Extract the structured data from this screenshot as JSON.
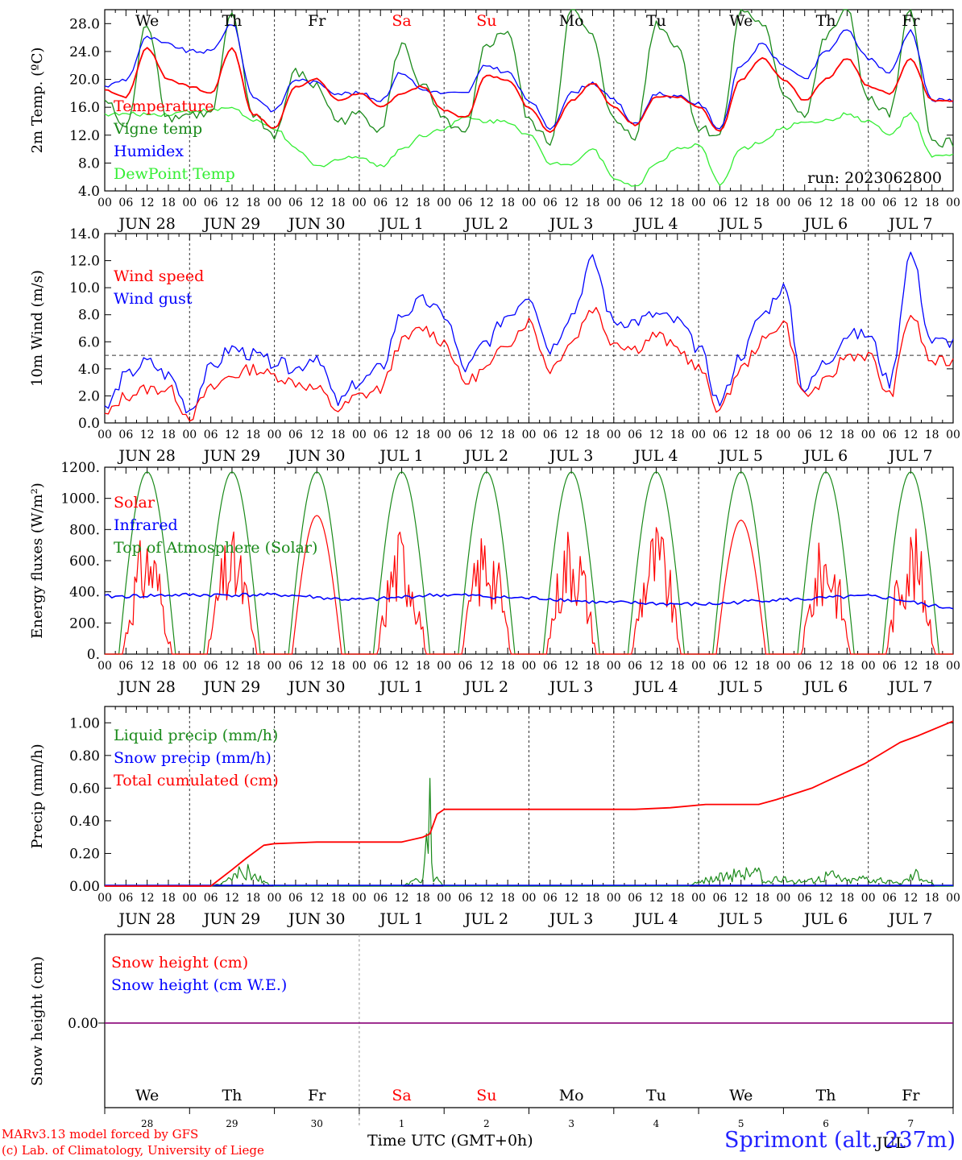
{
  "colors": {
    "temperature": "#ff0000",
    "vigne": "#1a8a1a",
    "humidex": "#0000ff",
    "dewpoint": "#33ee33",
    "snow_cm": "#ff0000",
    "snow_we": "#0000ff"
  },
  "date_labels": [
    "JUN 28",
    "JUN 29",
    "JUN 30",
    "JUL  1",
    "JUL  2",
    "JUL  3",
    "JUL  4",
    "JUL  5",
    "JUL  6",
    "JUL  7"
  ],
  "hour_labels": [
    "00",
    "06",
    "12",
    "18"
  ],
  "weekdays": [
    {
      "label": "We",
      "color": "#000000"
    },
    {
      "label": "Th",
      "color": "#000000"
    },
    {
      "label": "Fr",
      "color": "#000000"
    },
    {
      "label": "Sa",
      "color": "#ff0000"
    },
    {
      "label": "Su",
      "color": "#ff0000"
    },
    {
      "label": "Mo",
      "color": "#000000"
    },
    {
      "label": "Tu",
      "color": "#000000"
    },
    {
      "label": "We",
      "color": "#000000"
    },
    {
      "label": "Th",
      "color": "#000000"
    },
    {
      "label": "Fr",
      "color": "#000000"
    }
  ],
  "day_numbers": [
    "28",
    "29",
    "30",
    "1",
    "2",
    "3",
    "4",
    "5",
    "6",
    "7"
  ],
  "bottom_month": "JUL",
  "footer": {
    "credit_line1": "MARv3.13 model forced by GFS",
    "credit_line2": "(c) Lab. of Climatology, University of Liege",
    "time_label": "Time UTC (GMT+0h)",
    "station": "Sprimont (alt. 237m)"
  },
  "chart_data": [
    {
      "type": "line",
      "ylabel": "2m Temp. (ºC)",
      "ylim": [
        4.0,
        30.0
      ],
      "yticks": [
        "4.0",
        "8.0",
        "12.0",
        "16.0",
        "20.0",
        "24.0",
        "28.0"
      ],
      "run": "run: 2023062800",
      "x_unit": "hours since 2023-06-28 00 UTC",
      "series": [
        {
          "name": "Temperature",
          "x": [
            0,
            6,
            12,
            18,
            24,
            30,
            36,
            42,
            48,
            54,
            60,
            66,
            72,
            78,
            84,
            90,
            96,
            102,
            108,
            114,
            120,
            126,
            132,
            138,
            144,
            150,
            156,
            162,
            168,
            174,
            180,
            186,
            192,
            198,
            204,
            210,
            216,
            222,
            228,
            234
          ],
          "values": [
            18.5,
            17.5,
            24.5,
            20,
            19,
            18,
            24.5,
            15,
            13,
            19,
            20,
            17,
            18,
            16,
            18,
            19,
            15.5,
            14.5,
            20.5,
            20,
            16,
            12.5,
            17,
            19.5,
            16,
            13.5,
            17.5,
            17.5,
            16,
            12.5,
            20,
            23,
            20,
            17,
            20,
            23,
            19,
            18,
            23,
            17
          ]
        },
        {
          "name": "Vigne temp",
          "x": [
            0,
            6,
            12,
            18,
            24,
            30,
            36,
            42,
            48,
            54,
            60,
            66,
            72,
            78,
            84,
            90,
            96,
            102,
            108,
            114,
            120,
            126,
            132,
            138,
            144,
            150,
            156,
            162,
            168,
            174,
            180,
            186,
            192,
            198,
            204,
            210,
            216,
            222,
            228,
            234
          ],
          "values": [
            17,
            13,
            28,
            14.5,
            15,
            15,
            29,
            15,
            12,
            21,
            19,
            14,
            15,
            13,
            25,
            19,
            14,
            12,
            25,
            27,
            14,
            11,
            30,
            26,
            14,
            12,
            28,
            25,
            13,
            12,
            30,
            28,
            18,
            15,
            26,
            30,
            17,
            15,
            30,
            11
          ]
        },
        {
          "name": "Humidex",
          "x": [
            0,
            6,
            12,
            18,
            24,
            30,
            36,
            42,
            48,
            54,
            60,
            66,
            72,
            78,
            84,
            90,
            96,
            102,
            108,
            114,
            120,
            126,
            132,
            138,
            144,
            150,
            156,
            162,
            168,
            174,
            180,
            186,
            192,
            198,
            204,
            210,
            216,
            222,
            228,
            234
          ],
          "values": [
            19,
            20,
            26,
            25,
            24,
            24,
            28,
            17.5,
            15.5,
            20,
            19.5,
            18,
            18,
            17,
            21,
            18.5,
            18,
            18,
            22,
            21,
            17,
            13,
            18,
            19.5,
            17,
            13.5,
            18,
            17.5,
            16.5,
            13,
            22,
            25,
            22,
            20,
            24,
            27,
            23,
            21,
            27,
            17
          ]
        },
        {
          "name": "DewPoint Temp",
          "x": [
            0,
            6,
            12,
            18,
            24,
            30,
            36,
            42,
            48,
            54,
            60,
            66,
            72,
            78,
            84,
            90,
            96,
            102,
            108,
            114,
            120,
            126,
            132,
            138,
            144,
            150,
            156,
            162,
            168,
            174,
            180,
            186,
            192,
            198,
            204,
            210,
            216,
            222,
            228,
            234
          ],
          "values": [
            15,
            15,
            15,
            15,
            15.5,
            15.5,
            16,
            14,
            13,
            10,
            7.5,
            8.5,
            9,
            7.5,
            10,
            12,
            13,
            14.5,
            14,
            14,
            12,
            8,
            8,
            10,
            6,
            4.5,
            8,
            10,
            10.5,
            5,
            10,
            11,
            13,
            14,
            14,
            15,
            14,
            12,
            15,
            9
          ]
        }
      ]
    },
    {
      "type": "line",
      "ylabel": "10m Wind (m/s)",
      "ylim": [
        0.0,
        14.0
      ],
      "yticks": [
        "0.0",
        "2.0",
        "4.0",
        "6.0",
        "8.0",
        "10.0",
        "12.0",
        "14.0"
      ],
      "reference_line": 5.0,
      "series": [
        {
          "name": "Wind speed",
          "x": [
            0,
            6,
            12,
            18,
            24,
            30,
            36,
            42,
            48,
            54,
            60,
            66,
            72,
            78,
            84,
            90,
            96,
            102,
            108,
            114,
            120,
            126,
            132,
            138,
            144,
            150,
            156,
            162,
            168,
            174,
            180,
            186,
            192,
            198,
            204,
            210,
            216,
            222,
            228,
            234
          ],
          "values": [
            0.5,
            2,
            2.5,
            2.5,
            0.5,
            2.5,
            3.5,
            4,
            3.5,
            3,
            2.5,
            1,
            2,
            2.5,
            6,
            7,
            6,
            3,
            4,
            6,
            7.5,
            4,
            6,
            8.5,
            6,
            5.5,
            6.5,
            5.5,
            4,
            1,
            4,
            6,
            7.5,
            2,
            3,
            5,
            5,
            2,
            8,
            4.5
          ]
        },
        {
          "name": "Wind gust",
          "x": [
            0,
            6,
            12,
            18,
            24,
            30,
            36,
            42,
            48,
            54,
            60,
            66,
            72,
            78,
            84,
            90,
            96,
            102,
            108,
            114,
            120,
            126,
            132,
            138,
            144,
            150,
            156,
            162,
            168,
            174,
            180,
            186,
            192,
            198,
            204,
            210,
            216,
            222,
            228,
            234
          ],
          "values": [
            1,
            3.5,
            4.5,
            3.5,
            1,
            4,
            5.5,
            5,
            4.5,
            4,
            5,
            1.5,
            3,
            4,
            8,
            9,
            8,
            4,
            6,
            8,
            9.5,
            5.5,
            8,
            12,
            7.5,
            7.5,
            8,
            7.5,
            5.5,
            1.5,
            5,
            8,
            10,
            2.5,
            4.5,
            6.5,
            6.5,
            3,
            12.5,
            6
          ]
        }
      ]
    },
    {
      "type": "line",
      "ylabel": "Energy fluxes (W/m²)",
      "ylim": [
        0,
        1200
      ],
      "yticks": [
        "0.",
        "200.",
        "400.",
        "600.",
        "800.",
        "1000.",
        "1200."
      ],
      "series": [
        {
          "name": "Solar",
          "day_peaks": [
            820,
            800,
            890,
            850,
            860,
            890,
            870,
            860,
            800,
            860
          ]
        },
        {
          "name": "Infrared",
          "x": [
            0,
            24,
            48,
            72,
            96,
            120,
            144,
            168,
            192,
            216,
            240
          ],
          "values": [
            370,
            380,
            380,
            350,
            380,
            360,
            330,
            320,
            350,
            370,
            300
          ]
        },
        {
          "name": "Top of Atmosphere (Solar)",
          "day_peaks": [
            1170,
            1170,
            1170,
            1170,
            1170,
            1170,
            1170,
            1170,
            1170,
            1170
          ]
        }
      ]
    },
    {
      "type": "line",
      "ylabel": "Precip (mm/h)",
      "ylim": [
        0.0,
        1.1
      ],
      "yticks": [
        "0.00",
        "0.20",
        "0.40",
        "0.60",
        "0.80",
        "1.00"
      ],
      "series": [
        {
          "name": "Liquid precip (mm/h)",
          "x": [
            0,
            30,
            34,
            36,
            40,
            44,
            46,
            48,
            60,
            84,
            90,
            92,
            93,
            94,
            96,
            104,
            120,
            165,
            170,
            185,
            186,
            190,
            200,
            205,
            210,
            215,
            220,
            225,
            230,
            235,
            240
          ],
          "values": [
            0,
            0,
            0.03,
            0.08,
            0.12,
            0.06,
            0.02,
            0,
            0,
            0,
            0.06,
            0.66,
            0.03,
            0.05,
            0,
            0,
            0,
            0,
            0.05,
            0.12,
            0.03,
            0.05,
            0.04,
            0.1,
            0.04,
            0.07,
            0.04,
            0.02,
            0.11,
            0,
            0
          ]
        },
        {
          "name": "Snow precip (mm/h)",
          "x": [
            0,
            240
          ],
          "values": [
            0,
            0
          ]
        },
        {
          "name": "Total cumulated (cm)",
          "x": [
            0,
            30,
            36,
            40,
            45,
            48,
            60,
            84,
            90,
            92,
            94,
            96,
            120,
            150,
            160,
            170,
            185,
            190,
            200,
            205,
            215,
            225,
            230,
            240
          ],
          "values": [
            0,
            0,
            0.1,
            0.17,
            0.25,
            0.26,
            0.27,
            0.27,
            0.3,
            0.32,
            0.44,
            0.47,
            0.47,
            0.47,
            0.48,
            0.5,
            0.5,
            0.53,
            0.6,
            0.65,
            0.75,
            0.88,
            0.92,
            1.01
          ]
        }
      ]
    },
    {
      "type": "line",
      "ylabel": "Snow height (cm)",
      "yticks": [
        "0.00"
      ],
      "series": [
        {
          "name": "Snow height (cm)",
          "x": [
            0,
            240
          ],
          "values": [
            0,
            0
          ]
        },
        {
          "name": "Snow height (cm W.E.)",
          "x": [
            0,
            240
          ],
          "values": [
            0,
            0
          ]
        }
      ]
    }
  ]
}
